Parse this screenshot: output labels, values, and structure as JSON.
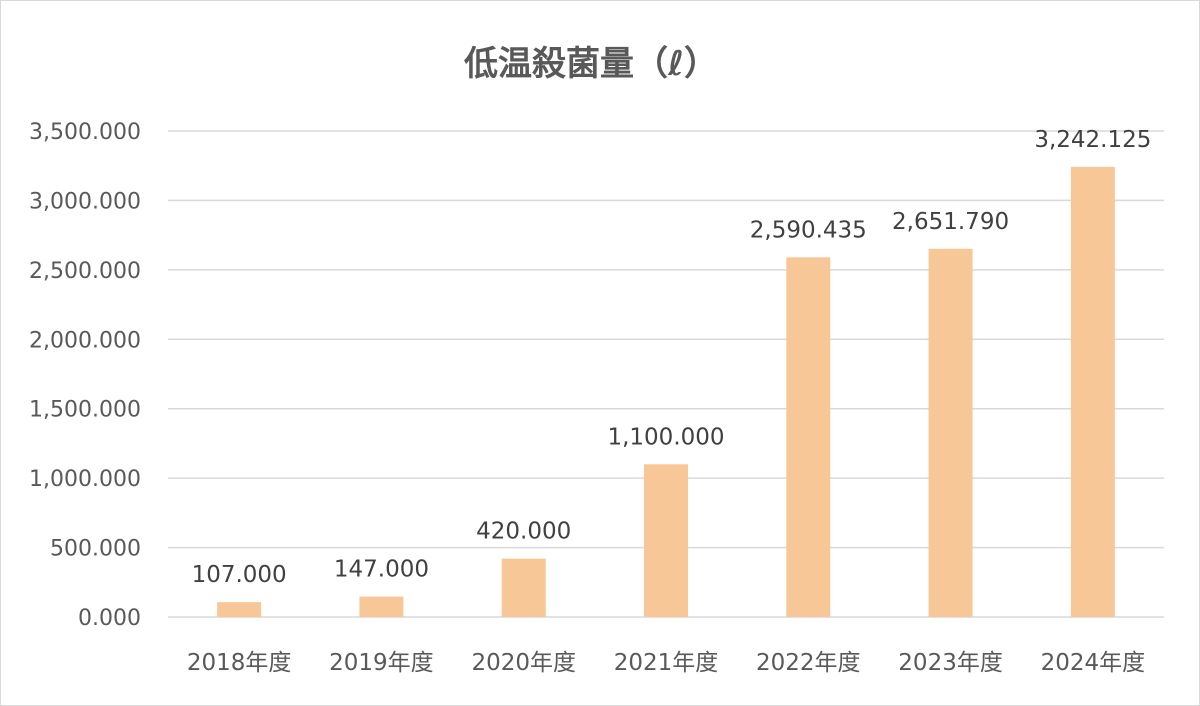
{
  "chart_data": {
    "type": "bar",
    "title": "低温殺菌量（ℓ）",
    "xlabel": "",
    "ylabel": "",
    "categories": [
      "2018年度",
      "2019年度",
      "2020年度",
      "2021年度",
      "2022年度",
      "2023年度",
      "2024年度"
    ],
    "values": [
      107.0,
      147.0,
      420.0,
      1100.0,
      2590.435,
      2651.79,
      3242.125
    ],
    "value_labels": [
      "107.000",
      "147.000",
      "420.000",
      "1,100.000",
      "2,590.435",
      "2,651.790",
      "3,242.125"
    ],
    "ylim": [
      0,
      3500
    ],
    "y_ticks": [
      0,
      500,
      1000,
      1500,
      2000,
      2500,
      3000,
      3500
    ],
    "y_tick_labels": [
      "0.000",
      "500.000",
      "1,000.000",
      "1,500.000",
      "2,000.000",
      "2,500.000",
      "3,000.000",
      "3,500.000"
    ],
    "grid": true,
    "legend": "none",
    "bar_color": "#F8C797",
    "grid_color": "#D9D9D9",
    "text_color": "#595959"
  }
}
